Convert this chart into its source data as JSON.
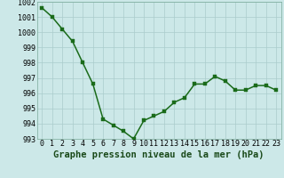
{
  "x": [
    0,
    1,
    2,
    3,
    4,
    5,
    6,
    7,
    8,
    9,
    10,
    11,
    12,
    13,
    14,
    15,
    16,
    17,
    18,
    19,
    20,
    21,
    22,
    23
  ],
  "y": [
    1001.6,
    1001.0,
    1000.2,
    999.4,
    998.0,
    996.6,
    994.3,
    993.9,
    993.5,
    993.0,
    994.2,
    994.5,
    994.8,
    995.4,
    995.7,
    996.6,
    996.6,
    997.1,
    996.8,
    996.2,
    996.2,
    996.5,
    996.5,
    996.2
  ],
  "line_color": "#1a6b1a",
  "marker_color": "#1a6b1a",
  "bg_color": "#cce8e8",
  "grid_color": "#aacccc",
  "xlabel": "Graphe pression niveau de la mer (hPa)",
  "ylim": [
    993,
    1002
  ],
  "yticks": [
    993,
    994,
    995,
    996,
    997,
    998,
    999,
    1000,
    1001,
    1002
  ],
  "xticks": [
    0,
    1,
    2,
    3,
    4,
    5,
    6,
    7,
    8,
    9,
    10,
    11,
    12,
    13,
    14,
    15,
    16,
    17,
    18,
    19,
    20,
    21,
    22,
    23
  ],
  "xlabel_fontsize": 7.5,
  "tick_fontsize": 6.0,
  "line_width": 1.1,
  "marker_size": 2.5
}
